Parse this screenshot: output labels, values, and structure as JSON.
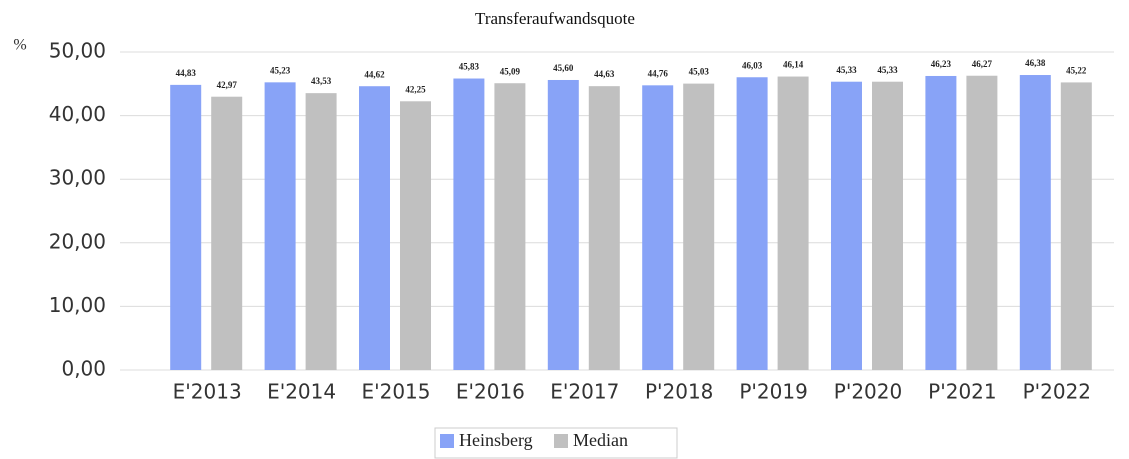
{
  "chart_data": {
    "type": "bar",
    "title": "Transferaufwandsquote",
    "ylabel": "%",
    "categories": [
      "E'2013",
      "E'2014",
      "E'2015",
      "E'2016",
      "E'2017",
      "P'2018",
      "P'2019",
      "P'2020",
      "P'2021",
      "P'2022"
    ],
    "series": [
      {
        "name": "Heinsberg",
        "color": "#88a3f7",
        "values": [
          44.83,
          45.23,
          44.62,
          45.83,
          45.6,
          44.76,
          46.03,
          45.33,
          46.23,
          46.38
        ],
        "value_labels": [
          "44,83",
          "45,23",
          "44,62",
          "45,83",
          "45,60",
          "44,76",
          "46,03",
          "45,33",
          "46,23",
          "46,38"
        ]
      },
      {
        "name": "Median",
        "color": "#c0c0c0",
        "values": [
          42.97,
          43.53,
          42.25,
          45.09,
          44.63,
          45.03,
          46.14,
          45.33,
          46.27,
          45.22
        ],
        "value_labels": [
          "42,97",
          "43,53",
          "42,25",
          "45,09",
          "44,63",
          "45,03",
          "46,14",
          "45,33",
          "46,27",
          "45,22"
        ]
      }
    ],
    "ylim": [
      0,
      50
    ],
    "yticks": [
      {
        "value": 0,
        "label": "0,00"
      },
      {
        "value": 10,
        "label": "10,00"
      },
      {
        "value": 20,
        "label": "20,00"
      },
      {
        "value": 30,
        "label": "30,00"
      },
      {
        "value": 40,
        "label": "40,00"
      },
      {
        "value": 50,
        "label": "50,00"
      }
    ],
    "grid": true,
    "legend": "bottom"
  }
}
